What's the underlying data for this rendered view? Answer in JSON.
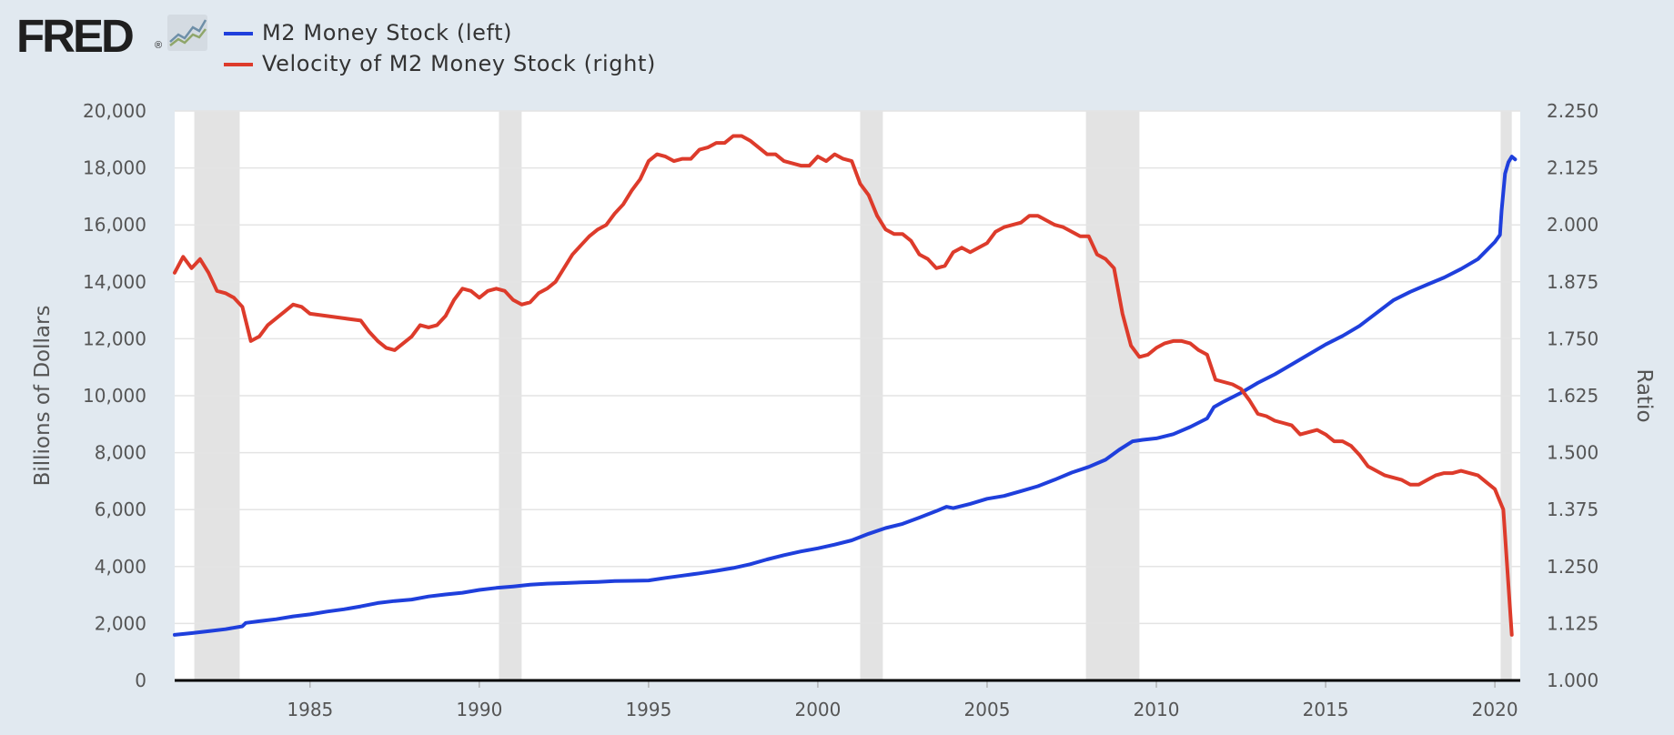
{
  "brand": {
    "logo_text": "FRED",
    "logo_mark": "®",
    "icon": "chart-line-icon"
  },
  "legend": [
    {
      "label": "M2 Money Stock (left)",
      "color": "#1f3fdc"
    },
    {
      "label": "Velocity of M2 Money Stock (right)",
      "color": "#dd3b2b"
    }
  ],
  "chart_data": {
    "type": "line",
    "x_axis": {
      "range": [
        1981.0,
        2020.75
      ],
      "ticks": [
        1985,
        1990,
        1995,
        2000,
        2005,
        2010,
        2015,
        2020
      ],
      "tick_labels": [
        "1985",
        "1990",
        "1995",
        "2000",
        "2005",
        "2010",
        "2015",
        "2020"
      ]
    },
    "y_left": {
      "label": "Billions of Dollars",
      "range": [
        0,
        20000
      ],
      "ticks": [
        0,
        2000,
        4000,
        6000,
        8000,
        10000,
        12000,
        14000,
        16000,
        18000,
        20000
      ],
      "tick_labels": [
        "0",
        "2,000",
        "4,000",
        "6,000",
        "8,000",
        "10,000",
        "12,000",
        "14,000",
        "16,000",
        "18,000",
        "20,000"
      ]
    },
    "y_right": {
      "label": "Ratio",
      "range": [
        1.0,
        2.25
      ],
      "ticks": [
        1.0,
        1.125,
        1.25,
        1.375,
        1.5,
        1.625,
        1.75,
        1.875,
        2.0,
        2.125,
        2.25
      ],
      "tick_labels": [
        "1.000",
        "1.125",
        "1.250",
        "1.375",
        "1.500",
        "1.625",
        "1.750",
        "1.875",
        "2.000",
        "2.125",
        "2.250"
      ]
    },
    "grid": "horizontal",
    "recessions": [
      [
        1981.58,
        1982.92
      ],
      [
        1990.58,
        1991.25
      ],
      [
        2001.25,
        2001.92
      ],
      [
        2007.92,
        2009.5
      ],
      [
        2020.17,
        2020.5
      ]
    ],
    "series": [
      {
        "name": "M2 Money Stock (left)",
        "axis": "left",
        "color": "#1f3fdc",
        "points": [
          [
            1981.0,
            1600
          ],
          [
            1981.5,
            1660
          ],
          [
            1982.0,
            1730
          ],
          [
            1982.5,
            1800
          ],
          [
            1983.0,
            1900
          ],
          [
            1983.1,
            2020
          ],
          [
            1983.5,
            2080
          ],
          [
            1984.0,
            2150
          ],
          [
            1984.5,
            2250
          ],
          [
            1985.0,
            2320
          ],
          [
            1985.5,
            2420
          ],
          [
            1986.0,
            2500
          ],
          [
            1986.5,
            2600
          ],
          [
            1987.0,
            2720
          ],
          [
            1987.5,
            2790
          ],
          [
            1988.0,
            2840
          ],
          [
            1988.5,
            2950
          ],
          [
            1989.0,
            3020
          ],
          [
            1989.5,
            3080
          ],
          [
            1990.0,
            3180
          ],
          [
            1990.5,
            3250
          ],
          [
            1991.0,
            3300
          ],
          [
            1991.5,
            3360
          ],
          [
            1992.0,
            3400
          ],
          [
            1992.5,
            3420
          ],
          [
            1993.0,
            3440
          ],
          [
            1993.5,
            3460
          ],
          [
            1994.0,
            3490
          ],
          [
            1994.5,
            3500
          ],
          [
            1995.0,
            3510
          ],
          [
            1995.5,
            3600
          ],
          [
            1996.0,
            3680
          ],
          [
            1996.5,
            3760
          ],
          [
            1997.0,
            3850
          ],
          [
            1997.5,
            3950
          ],
          [
            1998.0,
            4080
          ],
          [
            1998.5,
            4250
          ],
          [
            1999.0,
            4400
          ],
          [
            1999.5,
            4530
          ],
          [
            2000.0,
            4640
          ],
          [
            2000.5,
            4770
          ],
          [
            2001.0,
            4920
          ],
          [
            2001.5,
            5150
          ],
          [
            2002.0,
            5350
          ],
          [
            2002.5,
            5500
          ],
          [
            2003.0,
            5720
          ],
          [
            2003.5,
            5950
          ],
          [
            2003.8,
            6100
          ],
          [
            2004.0,
            6050
          ],
          [
            2004.5,
            6200
          ],
          [
            2005.0,
            6380
          ],
          [
            2005.5,
            6480
          ],
          [
            2006.0,
            6650
          ],
          [
            2006.5,
            6820
          ],
          [
            2007.0,
            7050
          ],
          [
            2007.5,
            7300
          ],
          [
            2008.0,
            7500
          ],
          [
            2008.5,
            7750
          ],
          [
            2008.9,
            8100
          ],
          [
            2009.3,
            8400
          ],
          [
            2009.6,
            8450
          ],
          [
            2010.0,
            8500
          ],
          [
            2010.5,
            8650
          ],
          [
            2011.0,
            8900
          ],
          [
            2011.5,
            9200
          ],
          [
            2011.7,
            9600
          ],
          [
            2012.0,
            9800
          ],
          [
            2012.5,
            10100
          ],
          [
            2013.0,
            10450
          ],
          [
            2013.5,
            10750
          ],
          [
            2014.0,
            11100
          ],
          [
            2014.5,
            11450
          ],
          [
            2015.0,
            11800
          ],
          [
            2015.5,
            12100
          ],
          [
            2016.0,
            12450
          ],
          [
            2016.5,
            12900
          ],
          [
            2017.0,
            13350
          ],
          [
            2017.5,
            13650
          ],
          [
            2018.0,
            13900
          ],
          [
            2018.5,
            14150
          ],
          [
            2019.0,
            14450
          ],
          [
            2019.5,
            14800
          ],
          [
            2020.0,
            15400
          ],
          [
            2020.15,
            15650
          ],
          [
            2020.2,
            16500
          ],
          [
            2020.3,
            17800
          ],
          [
            2020.4,
            18200
          ],
          [
            2020.5,
            18400
          ],
          [
            2020.6,
            18300
          ]
        ]
      },
      {
        "name": "Velocity of M2 Money Stock (right)",
        "axis": "right",
        "color": "#dd3b2b",
        "points": [
          [
            1981.0,
            1.895
          ],
          [
            1981.25,
            1.93
          ],
          [
            1981.5,
            1.905
          ],
          [
            1981.75,
            1.925
          ],
          [
            1982.0,
            1.895
          ],
          [
            1982.25,
            1.855
          ],
          [
            1982.5,
            1.85
          ],
          [
            1982.75,
            1.84
          ],
          [
            1983.0,
            1.82
          ],
          [
            1983.25,
            1.745
          ],
          [
            1983.5,
            1.755
          ],
          [
            1983.75,
            1.78
          ],
          [
            1984.0,
            1.795
          ],
          [
            1984.25,
            1.81
          ],
          [
            1984.5,
            1.825
          ],
          [
            1984.75,
            1.82
          ],
          [
            1985.0,
            1.805
          ],
          [
            1985.5,
            1.8
          ],
          [
            1986.0,
            1.795
          ],
          [
            1986.5,
            1.79
          ],
          [
            1986.75,
            1.765
          ],
          [
            1987.0,
            1.745
          ],
          [
            1987.25,
            1.73
          ],
          [
            1987.5,
            1.725
          ],
          [
            1987.75,
            1.74
          ],
          [
            1988.0,
            1.755
          ],
          [
            1988.25,
            1.78
          ],
          [
            1988.5,
            1.775
          ],
          [
            1988.75,
            1.78
          ],
          [
            1989.0,
            1.8
          ],
          [
            1989.25,
            1.835
          ],
          [
            1989.5,
            1.86
          ],
          [
            1989.75,
            1.855
          ],
          [
            1990.0,
            1.84
          ],
          [
            1990.25,
            1.855
          ],
          [
            1990.5,
            1.86
          ],
          [
            1990.75,
            1.855
          ],
          [
            1991.0,
            1.835
          ],
          [
            1991.25,
            1.825
          ],
          [
            1991.5,
            1.83
          ],
          [
            1991.75,
            1.85
          ],
          [
            1992.0,
            1.86
          ],
          [
            1992.25,
            1.875
          ],
          [
            1992.5,
            1.905
          ],
          [
            1992.75,
            1.935
          ],
          [
            1993.0,
            1.955
          ],
          [
            1993.25,
            1.975
          ],
          [
            1993.5,
            1.99
          ],
          [
            1993.75,
            2.0
          ],
          [
            1994.0,
            2.025
          ],
          [
            1994.25,
            2.045
          ],
          [
            1994.5,
            2.075
          ],
          [
            1994.75,
            2.1
          ],
          [
            1995.0,
            2.14
          ],
          [
            1995.25,
            2.155
          ],
          [
            1995.5,
            2.15
          ],
          [
            1995.75,
            2.14
          ],
          [
            1996.0,
            2.145
          ],
          [
            1996.25,
            2.145
          ],
          [
            1996.5,
            2.165
          ],
          [
            1996.75,
            2.17
          ],
          [
            1997.0,
            2.18
          ],
          [
            1997.25,
            2.18
          ],
          [
            1997.5,
            2.195
          ],
          [
            1997.75,
            2.195
          ],
          [
            1998.0,
            2.185
          ],
          [
            1998.25,
            2.17
          ],
          [
            1998.5,
            2.155
          ],
          [
            1998.75,
            2.155
          ],
          [
            1999.0,
            2.14
          ],
          [
            1999.25,
            2.135
          ],
          [
            1999.5,
            2.13
          ],
          [
            1999.75,
            2.13
          ],
          [
            2000.0,
            2.15
          ],
          [
            2000.25,
            2.14
          ],
          [
            2000.5,
            2.155
          ],
          [
            2000.75,
            2.145
          ],
          [
            2001.0,
            2.14
          ],
          [
            2001.25,
            2.09
          ],
          [
            2001.5,
            2.065
          ],
          [
            2001.75,
            2.02
          ],
          [
            2002.0,
            1.99
          ],
          [
            2002.25,
            1.98
          ],
          [
            2002.5,
            1.98
          ],
          [
            2002.75,
            1.965
          ],
          [
            2003.0,
            1.935
          ],
          [
            2003.25,
            1.925
          ],
          [
            2003.5,
            1.905
          ],
          [
            2003.75,
            1.91
          ],
          [
            2004.0,
            1.94
          ],
          [
            2004.25,
            1.95
          ],
          [
            2004.5,
            1.94
          ],
          [
            2004.75,
            1.95
          ],
          [
            2005.0,
            1.96
          ],
          [
            2005.25,
            1.985
          ],
          [
            2005.5,
            1.995
          ],
          [
            2005.75,
            2.0
          ],
          [
            2006.0,
            2.005
          ],
          [
            2006.25,
            2.02
          ],
          [
            2006.5,
            2.02
          ],
          [
            2006.75,
            2.01
          ],
          [
            2007.0,
            2.0
          ],
          [
            2007.25,
            1.995
          ],
          [
            2007.5,
            1.985
          ],
          [
            2007.75,
            1.975
          ],
          [
            2008.0,
            1.975
          ],
          [
            2008.25,
            1.935
          ],
          [
            2008.5,
            1.925
          ],
          [
            2008.75,
            1.905
          ],
          [
            2009.0,
            1.805
          ],
          [
            2009.25,
            1.735
          ],
          [
            2009.5,
            1.71
          ],
          [
            2009.75,
            1.715
          ],
          [
            2010.0,
            1.73
          ],
          [
            2010.25,
            1.74
          ],
          [
            2010.5,
            1.745
          ],
          [
            2010.75,
            1.745
          ],
          [
            2011.0,
            1.74
          ],
          [
            2011.25,
            1.725
          ],
          [
            2011.5,
            1.715
          ],
          [
            2011.75,
            1.66
          ],
          [
            2012.0,
            1.655
          ],
          [
            2012.25,
            1.65
          ],
          [
            2012.5,
            1.64
          ],
          [
            2012.75,
            1.615
          ],
          [
            2013.0,
            1.585
          ],
          [
            2013.25,
            1.58
          ],
          [
            2013.5,
            1.57
          ],
          [
            2013.75,
            1.565
          ],
          [
            2014.0,
            1.56
          ],
          [
            2014.25,
            1.54
          ],
          [
            2014.5,
            1.545
          ],
          [
            2014.75,
            1.55
          ],
          [
            2015.0,
            1.54
          ],
          [
            2015.25,
            1.525
          ],
          [
            2015.5,
            1.525
          ],
          [
            2015.75,
            1.515
          ],
          [
            2016.0,
            1.495
          ],
          [
            2016.25,
            1.47
          ],
          [
            2016.5,
            1.46
          ],
          [
            2016.75,
            1.45
          ],
          [
            2017.0,
            1.445
          ],
          [
            2017.25,
            1.44
          ],
          [
            2017.5,
            1.43
          ],
          [
            2017.75,
            1.43
          ],
          [
            2018.0,
            1.44
          ],
          [
            2018.25,
            1.45
          ],
          [
            2018.5,
            1.455
          ],
          [
            2018.75,
            1.455
          ],
          [
            2019.0,
            1.46
          ],
          [
            2019.25,
            1.455
          ],
          [
            2019.5,
            1.45
          ],
          [
            2019.75,
            1.435
          ],
          [
            2020.0,
            1.42
          ],
          [
            2020.25,
            1.375
          ],
          [
            2020.5,
            1.1
          ]
        ]
      }
    ]
  }
}
